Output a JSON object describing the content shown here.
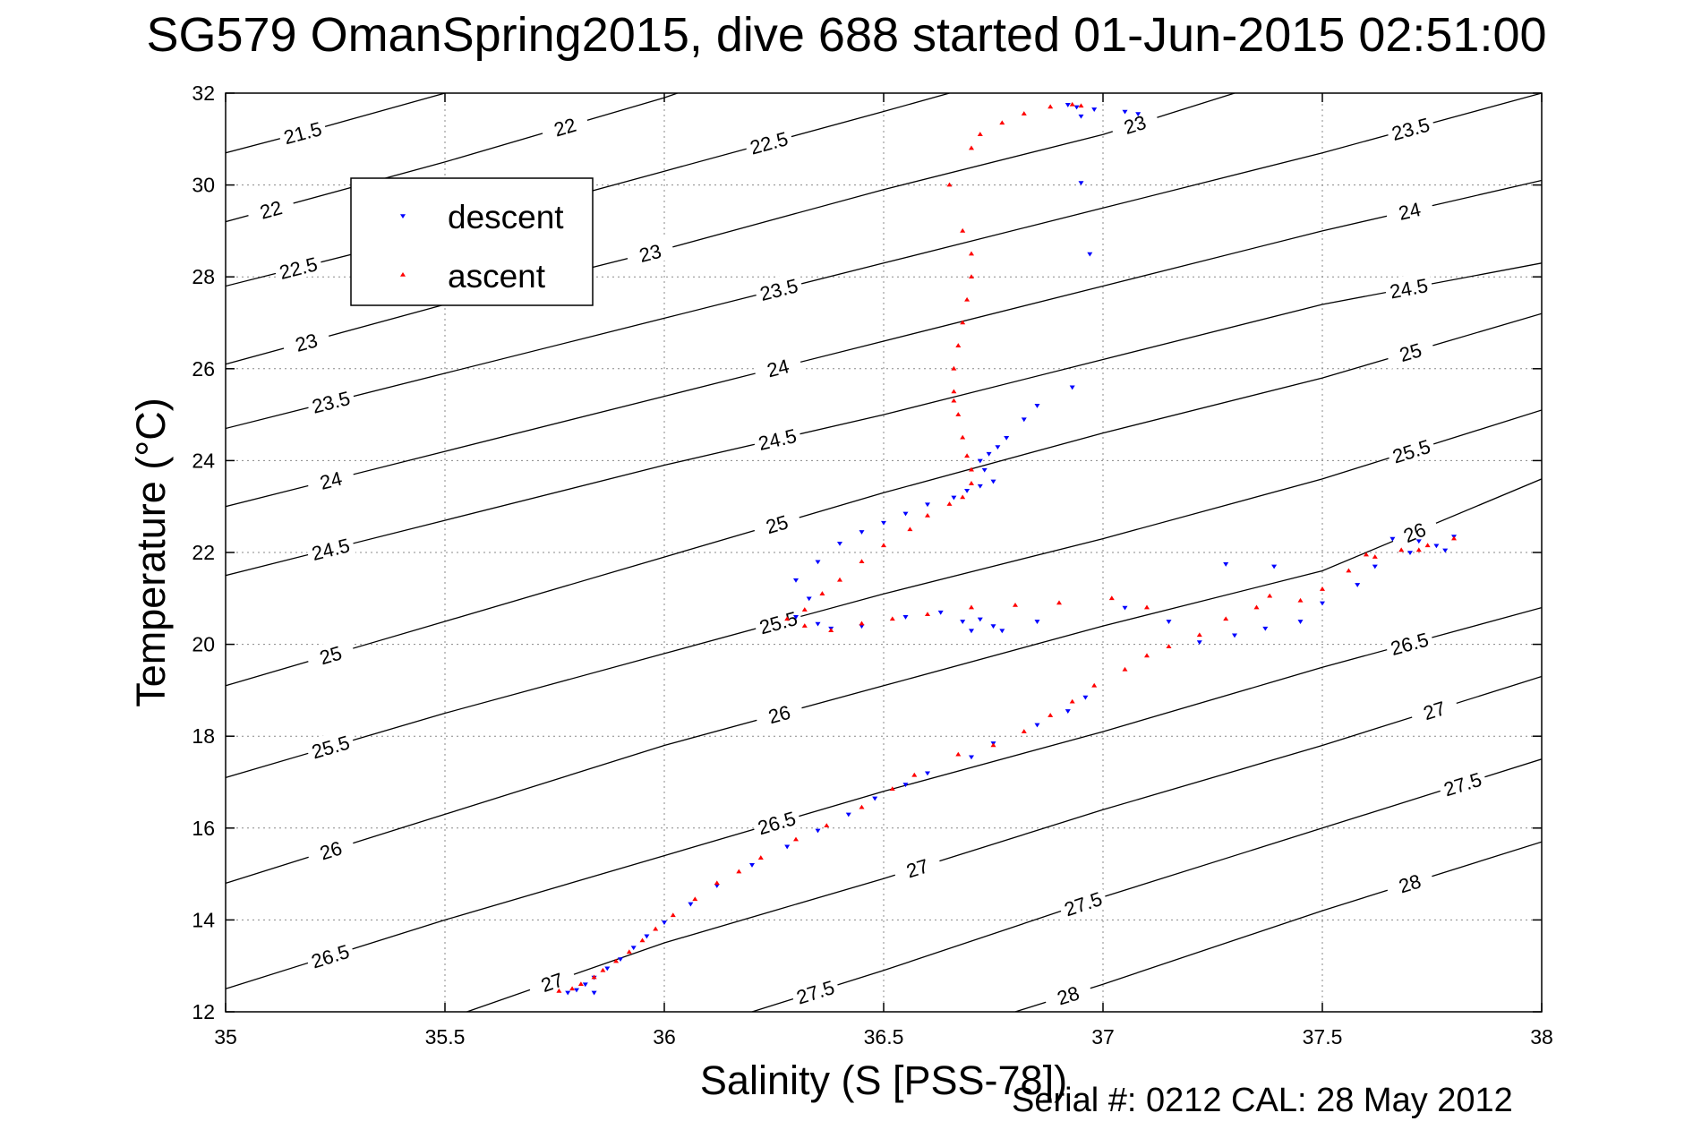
{
  "title": "SG579 OmanSpring2015, dive 688 started 01-Jun-2015 02:51:00",
  "serial_text": "Serial #: 0212  CAL: 28 May 2012",
  "chart_data": {
    "type": "scatter",
    "title": "SG579 OmanSpring2015, dive 688 started 01-Jun-2015 02:51:00",
    "xlabel": "Salinity (S [PSS-78])",
    "ylabel": "Temperature (°C)",
    "xlim": [
      35,
      38
    ],
    "ylim": [
      12,
      32
    ],
    "xticks": [
      35,
      35.5,
      36,
      36.5,
      37,
      37.5,
      38
    ],
    "xtick_labels": [
      "35",
      "35.5",
      "36",
      "36.5",
      "37",
      "37.5",
      "38"
    ],
    "yticks": [
      12,
      14,
      16,
      18,
      20,
      22,
      24,
      26,
      28,
      30,
      32
    ],
    "ytick_labels": [
      "12",
      "14",
      "16",
      "18",
      "20",
      "22",
      "24",
      "26",
      "28",
      "30",
      "32"
    ],
    "grid": true,
    "legend_position": "upper-left",
    "colors": {
      "descent": "#0000ff",
      "ascent": "#ff0000",
      "contour": "#000000"
    },
    "contours": [
      {
        "value": 21.5,
        "label": "21.5",
        "points": [
          [
            35,
            30.7
          ],
          [
            35.2,
            31.2
          ],
          [
            35.5,
            32
          ]
        ]
      },
      {
        "value": 22,
        "label": "22",
        "points": [
          [
            35,
            29.2
          ],
          [
            35.5,
            30.5
          ],
          [
            36,
            31.9
          ],
          [
            36.03,
            32
          ]
        ]
      },
      {
        "value": 22.5,
        "label": "22.5",
        "points": [
          [
            35,
            27.8
          ],
          [
            35.5,
            29
          ],
          [
            36,
            30.3
          ],
          [
            36.5,
            31.6
          ],
          [
            36.65,
            32
          ]
        ]
      },
      {
        "value": 23,
        "label": "23",
        "points": [
          [
            35,
            26.1
          ],
          [
            35.5,
            27.4
          ],
          [
            36,
            28.6
          ],
          [
            36.5,
            29.9
          ],
          [
            37,
            31.1
          ],
          [
            37.3,
            32
          ]
        ]
      },
      {
        "value": 23.5,
        "label": "23.5",
        "points": [
          [
            35,
            24.7
          ],
          [
            35.5,
            25.9
          ],
          [
            36,
            27.1
          ],
          [
            36.5,
            28.3
          ],
          [
            37,
            29.5
          ],
          [
            37.5,
            30.7
          ],
          [
            38,
            32
          ]
        ]
      },
      {
        "value": 24,
        "label": "24",
        "points": [
          [
            35,
            23
          ],
          [
            35.5,
            24.2
          ],
          [
            36,
            25.4
          ],
          [
            36.5,
            26.6
          ],
          [
            37,
            27.8
          ],
          [
            37.5,
            29
          ],
          [
            38,
            30.1
          ]
        ]
      },
      {
        "value": 24.5,
        "label": "24.5",
        "points": [
          [
            35,
            21.5
          ],
          [
            35.5,
            22.7
          ],
          [
            36,
            23.9
          ],
          [
            36.5,
            25
          ],
          [
            37,
            26.2
          ],
          [
            37.5,
            27.4
          ],
          [
            38,
            28.3
          ]
        ]
      },
      {
        "value": 25,
        "label": "25",
        "points": [
          [
            35,
            19.1
          ],
          [
            35.5,
            20.5
          ],
          [
            36,
            21.9
          ],
          [
            36.5,
            23.3
          ],
          [
            37,
            24.6
          ],
          [
            37.5,
            25.8
          ],
          [
            38,
            27.2
          ]
        ]
      },
      {
        "value": 25.5,
        "label": "25.5",
        "points": [
          [
            35,
            17.1
          ],
          [
            35.5,
            18.5
          ],
          [
            36,
            19.8
          ],
          [
            36.5,
            21.1
          ],
          [
            37,
            22.3
          ],
          [
            37.5,
            23.6
          ],
          [
            38,
            25.1
          ]
        ]
      },
      {
        "value": 26,
        "label": "26",
        "points": [
          [
            35,
            14.8
          ],
          [
            35.5,
            16.3
          ],
          [
            36,
            17.8
          ],
          [
            36.5,
            19.1
          ],
          [
            37,
            20.4
          ],
          [
            37.5,
            21.6
          ],
          [
            38,
            23.6
          ]
        ]
      },
      {
        "value": 26.5,
        "label": "26.5",
        "points": [
          [
            35,
            12.5
          ],
          [
            35.5,
            14
          ],
          [
            36,
            15.4
          ],
          [
            36.5,
            16.8
          ],
          [
            37,
            18.1
          ],
          [
            37.5,
            19.5
          ],
          [
            38,
            20.8
          ]
        ]
      },
      {
        "value": 27,
        "label": "27",
        "points": [
          [
            35.55,
            12
          ],
          [
            36,
            13.5
          ],
          [
            36.5,
            14.9
          ],
          [
            37,
            16.4
          ],
          [
            37.5,
            17.8
          ],
          [
            38,
            19.3
          ]
        ]
      },
      {
        "value": 27.5,
        "label": "27.5",
        "points": [
          [
            36.2,
            12
          ],
          [
            36.5,
            12.9
          ],
          [
            37,
            14.5
          ],
          [
            37.5,
            16
          ],
          [
            38,
            17.5
          ]
        ]
      },
      {
        "value": 28,
        "label": "28",
        "points": [
          [
            36.8,
            12
          ],
          [
            37,
            12.6
          ],
          [
            37.5,
            14.2
          ],
          [
            38,
            15.7
          ]
        ]
      }
    ],
    "series": [
      {
        "name": "descent",
        "marker": "triangle-down",
        "points": [
          [
            36.92,
            31.75
          ],
          [
            36.94,
            31.7
          ],
          [
            36.98,
            31.65
          ],
          [
            37.05,
            31.6
          ],
          [
            37.08,
            31.55
          ],
          [
            36.95,
            31.5
          ],
          [
            36.95,
            30.05
          ],
          [
            36.97,
            28.5
          ],
          [
            36.93,
            25.6
          ],
          [
            36.85,
            25.2
          ],
          [
            36.82,
            24.9
          ],
          [
            36.78,
            24.5
          ],
          [
            36.76,
            24.3
          ],
          [
            36.74,
            24.15
          ],
          [
            36.72,
            24
          ],
          [
            36.73,
            23.8
          ],
          [
            36.75,
            23.55
          ],
          [
            36.72,
            23.45
          ],
          [
            36.69,
            23.35
          ],
          [
            36.66,
            23.2
          ],
          [
            36.6,
            23.05
          ],
          [
            36.55,
            22.85
          ],
          [
            36.5,
            22.65
          ],
          [
            36.45,
            22.45
          ],
          [
            36.4,
            22.2
          ],
          [
            36.35,
            21.8
          ],
          [
            36.3,
            21.4
          ],
          [
            36.33,
            21.0
          ],
          [
            36.3,
            20.6
          ],
          [
            36.35,
            20.45
          ],
          [
            36.38,
            20.35
          ],
          [
            36.45,
            20.4
          ],
          [
            36.55,
            20.6
          ],
          [
            36.63,
            20.7
          ],
          [
            36.68,
            20.5
          ],
          [
            36.7,
            20.3
          ],
          [
            36.72,
            20.55
          ],
          [
            36.75,
            20.4
          ],
          [
            36.77,
            20.3
          ],
          [
            36.85,
            20.5
          ],
          [
            37.05,
            20.8
          ],
          [
            37.15,
            20.5
          ],
          [
            37.22,
            20.05
          ],
          [
            37.3,
            20.2
          ],
          [
            37.37,
            20.35
          ],
          [
            37.45,
            20.5
          ],
          [
            37.5,
            20.9
          ],
          [
            37.58,
            21.3
          ],
          [
            37.62,
            21.7
          ],
          [
            37.66,
            22.3
          ],
          [
            37.72,
            22.25
          ],
          [
            37.76,
            22.15
          ],
          [
            37.8,
            22.35
          ],
          [
            37.78,
            22.05
          ],
          [
            37.7,
            22.0
          ],
          [
            37.39,
            21.7
          ],
          [
            37.28,
            21.75
          ],
          [
            36.96,
            18.85
          ],
          [
            36.92,
            18.55
          ],
          [
            36.85,
            18.25
          ],
          [
            36.75,
            17.85
          ],
          [
            36.7,
            17.55
          ],
          [
            36.6,
            17.2
          ],
          [
            36.55,
            16.95
          ],
          [
            36.48,
            16.65
          ],
          [
            36.42,
            16.3
          ],
          [
            36.35,
            15.95
          ],
          [
            36.28,
            15.6
          ],
          [
            36.2,
            15.2
          ],
          [
            36.12,
            14.75
          ],
          [
            36.06,
            14.35
          ],
          [
            36.0,
            13.95
          ],
          [
            35.96,
            13.65
          ],
          [
            35.93,
            13.4
          ],
          [
            35.9,
            13.15
          ],
          [
            35.87,
            12.95
          ],
          [
            35.84,
            12.75
          ],
          [
            35.82,
            12.6
          ],
          [
            35.8,
            12.48
          ],
          [
            35.78,
            12.42
          ],
          [
            35.84,
            12.42
          ]
        ]
      },
      {
        "name": "ascent",
        "marker": "triangle-up",
        "points": [
          [
            35.76,
            12.45
          ],
          [
            35.79,
            12.5
          ],
          [
            35.81,
            12.6
          ],
          [
            35.84,
            12.75
          ],
          [
            35.86,
            12.9
          ],
          [
            35.89,
            13.1
          ],
          [
            35.92,
            13.3
          ],
          [
            35.95,
            13.55
          ],
          [
            35.98,
            13.8
          ],
          [
            36.02,
            14.1
          ],
          [
            36.07,
            14.45
          ],
          [
            36.12,
            14.8
          ],
          [
            36.17,
            15.05
          ],
          [
            36.22,
            15.35
          ],
          [
            36.3,
            15.75
          ],
          [
            36.37,
            16.05
          ],
          [
            36.45,
            16.45
          ],
          [
            36.52,
            16.85
          ],
          [
            36.57,
            17.15
          ],
          [
            36.67,
            17.6
          ],
          [
            36.75,
            17.8
          ],
          [
            36.82,
            18.1
          ],
          [
            36.88,
            18.45
          ],
          [
            36.93,
            18.75
          ],
          [
            36.98,
            19.1
          ],
          [
            37.05,
            19.45
          ],
          [
            37.1,
            19.75
          ],
          [
            37.15,
            19.95
          ],
          [
            37.22,
            20.2
          ],
          [
            37.28,
            20.55
          ],
          [
            37.35,
            20.8
          ],
          [
            37.38,
            21.05
          ],
          [
            37.45,
            20.95
          ],
          [
            37.5,
            21.2
          ],
          [
            37.56,
            21.6
          ],
          [
            37.62,
            21.9
          ],
          [
            37.68,
            22.05
          ],
          [
            37.74,
            22.15
          ],
          [
            37.8,
            22.3
          ],
          [
            37.72,
            22.05
          ],
          [
            37.6,
            21.95
          ],
          [
            37.1,
            20.8
          ],
          [
            37.02,
            21.0
          ],
          [
            36.9,
            20.9
          ],
          [
            36.8,
            20.85
          ],
          [
            36.7,
            20.8
          ],
          [
            36.6,
            20.65
          ],
          [
            36.52,
            20.55
          ],
          [
            36.45,
            20.45
          ],
          [
            36.38,
            20.3
          ],
          [
            36.32,
            20.4
          ],
          [
            36.28,
            20.55
          ],
          [
            36.32,
            20.75
          ],
          [
            36.36,
            21.1
          ],
          [
            36.4,
            21.4
          ],
          [
            36.45,
            21.8
          ],
          [
            36.5,
            22.15
          ],
          [
            36.56,
            22.5
          ],
          [
            36.6,
            22.8
          ],
          [
            36.65,
            23.05
          ],
          [
            36.68,
            23.2
          ],
          [
            36.7,
            23.5
          ],
          [
            36.7,
            23.8
          ],
          [
            36.69,
            24.1
          ],
          [
            36.68,
            24.5
          ],
          [
            36.67,
            25.0
          ],
          [
            36.66,
            25.3
          ],
          [
            36.66,
            25.5
          ],
          [
            36.66,
            26.0
          ],
          [
            36.67,
            26.5
          ],
          [
            36.68,
            27.0
          ],
          [
            36.69,
            27.5
          ],
          [
            36.7,
            28.0
          ],
          [
            36.7,
            28.5
          ],
          [
            36.68,
            29.0
          ],
          [
            36.65,
            30.0
          ],
          [
            36.7,
            30.8
          ],
          [
            36.72,
            31.1
          ],
          [
            36.77,
            31.35
          ],
          [
            36.82,
            31.55
          ],
          [
            36.88,
            31.7
          ],
          [
            36.93,
            31.75
          ],
          [
            36.95,
            31.72
          ]
        ]
      }
    ]
  }
}
